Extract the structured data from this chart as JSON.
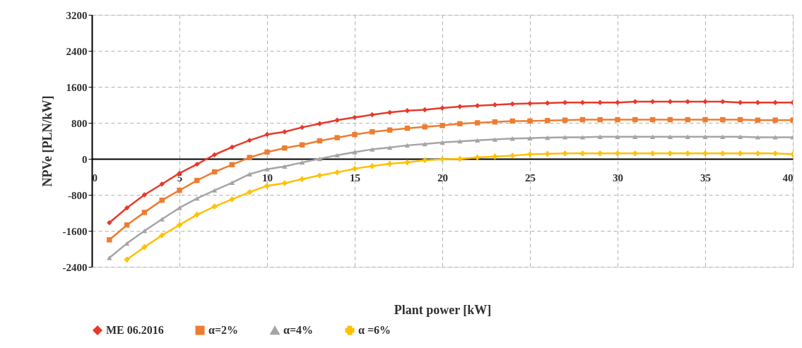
{
  "chart_data": {
    "type": "line",
    "xlabel": "Plant power [kW]",
    "ylabel": "NPVe [PLN/kW]",
    "x": [
      1,
      2,
      3,
      4,
      5,
      6,
      7,
      8,
      9,
      10,
      11,
      12,
      13,
      14,
      15,
      16,
      17,
      18,
      19,
      20,
      21,
      22,
      23,
      24,
      25,
      26,
      27,
      28,
      29,
      30,
      31,
      32,
      33,
      34,
      35,
      36,
      37,
      38,
      39,
      40
    ],
    "xlim": [
      0,
      40
    ],
    "xticks": [
      0,
      5,
      10,
      15,
      20,
      25,
      30,
      35,
      40
    ],
    "ylim": [
      -2400,
      3200
    ],
    "yticks": [
      -2400,
      -1600,
      -800,
      0,
      800,
      1600,
      2400,
      3200
    ],
    "grid": true,
    "legend": "bottom",
    "line_style": "solid",
    "series": [
      {
        "name": "ME 06.2016",
        "color": "#e8392b",
        "marker": "diamond",
        "values": [
          -1420,
          -1090,
          -800,
          -560,
          -320,
          -120,
          90,
          260,
          410,
          540,
          600,
          700,
          780,
          860,
          920,
          980,
          1030,
          1070,
          1090,
          1130,
          1160,
          1180,
          1200,
          1220,
          1230,
          1240,
          1250,
          1250,
          1250,
          1250,
          1270,
          1270,
          1270,
          1270,
          1270,
          1270,
          1250,
          1250,
          1250,
          1250
        ]
      },
      {
        "name": "α=2%",
        "color": "#ed7d31",
        "marker": "square",
        "values": [
          -1800,
          -1470,
          -1190,
          -920,
          -700,
          -480,
          -290,
          -130,
          30,
          150,
          240,
          310,
          400,
          470,
          540,
          600,
          640,
          680,
          710,
          740,
          780,
          800,
          820,
          840,
          840,
          850,
          860,
          870,
          870,
          870,
          870,
          870,
          870,
          870,
          870,
          870,
          870,
          860,
          860,
          860
        ]
      },
      {
        "name": "α=4%",
        "color": "#a5a5a5",
        "marker": "triangle",
        "values": [
          -2200,
          -1880,
          -1600,
          -1340,
          -1090,
          -880,
          -700,
          -530,
          -340,
          -230,
          -170,
          -80,
          0,
          80,
          150,
          210,
          250,
          300,
          330,
          365,
          390,
          410,
          430,
          450,
          460,
          470,
          480,
          480,
          490,
          490,
          490,
          490,
          490,
          490,
          490,
          490,
          490,
          480,
          480,
          480
        ]
      },
      {
        "name": "α =6%",
        "color": "#ffc000",
        "marker": "cross",
        "values": [
          null,
          -2240,
          -1960,
          -1700,
          -1470,
          -1240,
          -1060,
          -900,
          -740,
          -600,
          -540,
          -450,
          -370,
          -300,
          -220,
          -160,
          -110,
          -80,
          -30,
          -10,
          0,
          30,
          50,
          70,
          100,
          110,
          120,
          120,
          120,
          120,
          120,
          120,
          120,
          120,
          120,
          120,
          120,
          120,
          120,
          100
        ]
      }
    ]
  }
}
